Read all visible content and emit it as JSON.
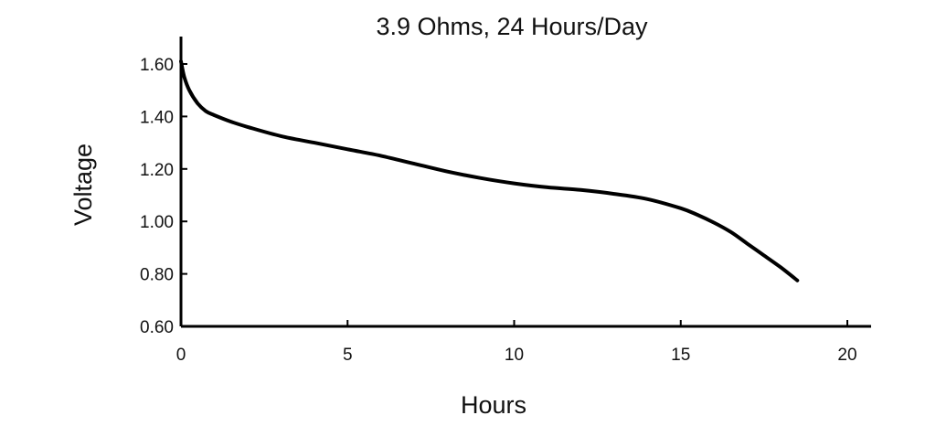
{
  "chart_data": {
    "type": "line",
    "title": "3.9 Ohms, 24 Hours/Day",
    "xlabel": "Hours",
    "ylabel": "Voltage",
    "xlim": [
      0,
      21
    ],
    "ylim": [
      0.6,
      1.7
    ],
    "x_ticks": [
      0,
      5,
      10,
      15,
      20
    ],
    "x_tick_labels": [
      "0",
      "5",
      "10",
      "15",
      "20"
    ],
    "y_ticks": [
      0.6,
      0.8,
      1.0,
      1.2,
      1.4,
      1.6
    ],
    "y_tick_labels": [
      "0.60",
      "0.80",
      "1.00",
      "1.20",
      "1.40",
      "1.60"
    ],
    "grid": false,
    "series": [
      {
        "x": [
          0,
          0.1,
          0.25,
          0.5,
          0.75,
          1,
          1.5,
          2,
          3,
          4,
          5,
          6,
          7,
          8,
          9,
          10,
          11,
          12,
          13,
          14,
          15,
          15.5,
          16,
          16.5,
          17,
          17.5,
          18,
          18.5
        ],
        "y": [
          1.61,
          1.55,
          1.5,
          1.45,
          1.42,
          1.405,
          1.38,
          1.36,
          1.325,
          1.3,
          1.275,
          1.25,
          1.22,
          1.19,
          1.165,
          1.145,
          1.13,
          1.12,
          1.105,
          1.085,
          1.05,
          1.025,
          0.995,
          0.96,
          0.915,
          0.87,
          0.825,
          0.775
        ]
      }
    ]
  }
}
